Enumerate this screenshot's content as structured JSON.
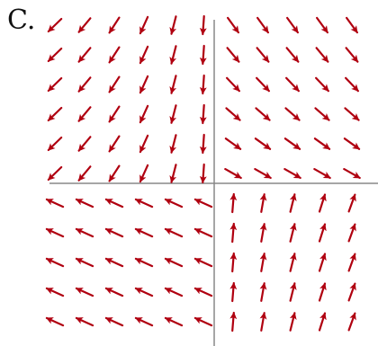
{
  "figure": {
    "label": "C.",
    "arrow_color": "#b00010",
    "axis_color": "#888888",
    "plot_type": "vector field (direction field)",
    "grid": {
      "columns": 11,
      "rows": 11
    }
  }
}
